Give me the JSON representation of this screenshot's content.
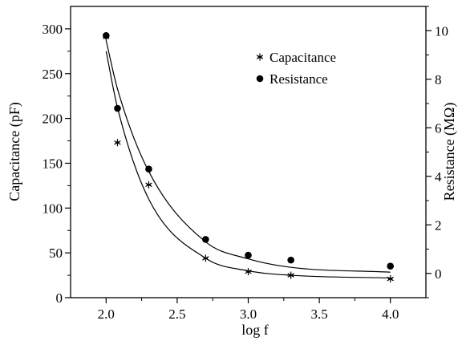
{
  "chart_data": {
    "type": "scatter",
    "xlabel": "log f",
    "ylabel_left": "Capacitance (pF)",
    "ylabel_right": "Resistance (MΩ)",
    "xlim": [
      1.75,
      4.25
    ],
    "ylim_left": [
      0,
      325
    ],
    "ylim_right": [
      -1,
      11
    ],
    "x_ticks": [
      2.0,
      2.5,
      3.0,
      3.5,
      4.0
    ],
    "x_tick_labels": [
      "2.0",
      "2.5",
      "3.0",
      "3.5",
      "4.0"
    ],
    "y_left_ticks": [
      0,
      50,
      100,
      150,
      200,
      250,
      300
    ],
    "y_left_tick_labels": [
      "0",
      "50",
      "100",
      "150",
      "200",
      "250",
      "300"
    ],
    "y_right_ticks": [
      0,
      2,
      4,
      6,
      8,
      10
    ],
    "y_right_tick_labels": [
      "0",
      "2",
      "4",
      "6",
      "8",
      "10"
    ],
    "legend_position": "top-right",
    "grid": false,
    "series": [
      {
        "name": "Capacitance",
        "axis": "left",
        "marker": "asterisk",
        "x": [
          2.0,
          2.08,
          2.3,
          2.7,
          3.0,
          3.3,
          4.0
        ],
        "y": [
          291,
          173,
          126,
          44,
          29,
          25,
          21
        ]
      },
      {
        "name": "Resistance",
        "axis": "right",
        "marker": "filled-circle",
        "x": [
          2.0,
          2.08,
          2.3,
          2.7,
          3.0,
          3.3,
          4.0
        ],
        "y": [
          9.8,
          6.8,
          4.3,
          1.4,
          0.75,
          0.55,
          0.3
        ]
      }
    ],
    "fit_curves": [
      {
        "series": "Capacitance",
        "x": [
          2.0,
          2.08,
          2.3,
          2.7,
          3.0,
          3.3,
          4.0
        ],
        "y": [
          275,
          212,
          110,
          44,
          30,
          25,
          22
        ]
      },
      {
        "series": "Resistance",
        "x": [
          2.0,
          2.08,
          2.3,
          2.7,
          3.0,
          3.3,
          4.0
        ],
        "y": [
          9.6,
          7.6,
          4.2,
          1.3,
          0.6,
          0.25,
          0.05
        ]
      }
    ]
  }
}
